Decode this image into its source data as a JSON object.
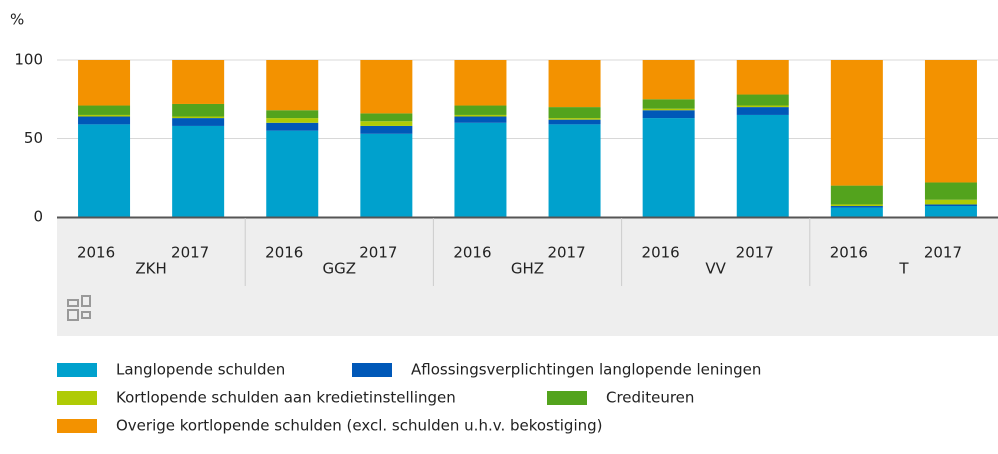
{
  "chart_data": {
    "type": "stacked_bar",
    "y_label": "%",
    "categories": [
      "2016",
      "2017",
      "2016",
      "2017",
      "2016",
      "2017",
      "2016",
      "2017",
      "2016",
      "2017"
    ],
    "groups": [
      "ZKH",
      "GGZ",
      "GHZ",
      "VV",
      "T"
    ],
    "series": [
      {
        "name": "Langlopende schulden",
        "color": "#00a1cd",
        "values": [
          59,
          58,
          55,
          53,
          60,
          59,
          63,
          65,
          6,
          7
        ]
      },
      {
        "name": "Aflossingsverplichtingen langlopende leningen",
        "color": "#0058b8",
        "values": [
          5,
          5,
          5,
          5,
          4,
          3,
          5,
          5,
          1,
          1
        ]
      },
      {
        "name": "Kortlopende schulden aan kredietinstellingen",
        "color": "#afcb05",
        "values": [
          1,
          1,
          3,
          3,
          1,
          1,
          1,
          1,
          1,
          3
        ]
      },
      {
        "name": "Crediteuren",
        "color": "#53a31d",
        "values": [
          6,
          8,
          5,
          5,
          6,
          7,
          6,
          7,
          12,
          11
        ]
      },
      {
        "name": "Overige kortlopende schulden (excl. schulden u.h.v. bekostiging)",
        "color": "#f39200",
        "values": [
          29,
          28,
          32,
          34,
          29,
          30,
          25,
          22,
          80,
          78
        ]
      }
    ],
    "ylim": [
      0,
      100
    ],
    "yticks": [
      0,
      50,
      100
    ],
    "grid": true
  }
}
